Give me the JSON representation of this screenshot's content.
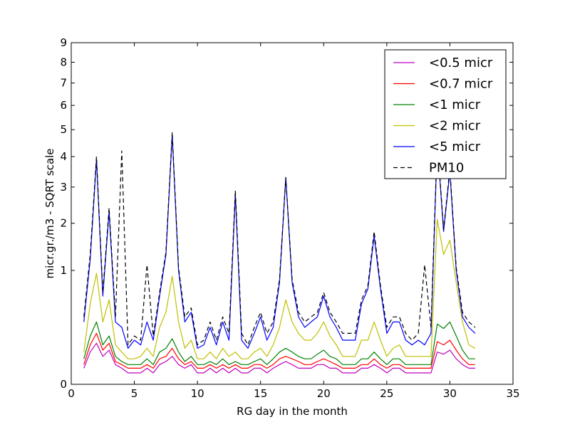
{
  "chart_data": {
    "type": "line",
    "title": "",
    "xlabel": "RG day in the month",
    "ylabel": "micr.gr./m3 - SQRT scale",
    "xlim": [
      0,
      35
    ],
    "ylim": [
      0,
      9
    ],
    "yscale": "sqrt",
    "x_ticks": [
      0,
      5,
      10,
      15,
      20,
      25,
      30,
      35
    ],
    "y_ticks": [
      0,
      1,
      2,
      3,
      4,
      5,
      6,
      7,
      8,
      9
    ],
    "grid": false,
    "legend_position": "top-right",
    "series": [
      {
        "name": "<0.5 micr",
        "color": "#bf00bf",
        "style": "solid",
        "x": [
          1,
          1.5,
          2,
          2.5,
          3,
          3.5,
          4,
          4.5,
          5,
          5.5,
          6,
          6.5,
          7,
          7.5,
          8,
          8.5,
          9,
          9.5,
          10,
          10.5,
          11,
          11.5,
          12,
          12.5,
          13,
          13.5,
          14,
          14.5,
          15,
          15.5,
          16,
          16.5,
          17,
          17.5,
          18,
          18.5,
          19,
          19.5,
          20,
          20.5,
          21,
          21.5,
          22,
          22.5,
          23,
          23.5,
          24,
          24.5,
          25,
          25.5,
          26,
          26.5,
          27,
          27.5,
          28,
          28.5,
          29,
          29.5,
          30,
          30.5,
          31,
          31.5,
          32
        ],
        "values": [
          0.02,
          0.08,
          0.13,
          0.06,
          0.09,
          0.03,
          0.02,
          0.01,
          0.01,
          0.01,
          0.02,
          0.01,
          0.03,
          0.04,
          0.06,
          0.03,
          0.02,
          0.03,
          0.01,
          0.01,
          0.02,
          0.01,
          0.02,
          0.01,
          0.02,
          0.01,
          0.01,
          0.02,
          0.02,
          0.01,
          0.02,
          0.03,
          0.04,
          0.03,
          0.02,
          0.02,
          0.02,
          0.03,
          0.03,
          0.02,
          0.02,
          0.01,
          0.01,
          0.01,
          0.02,
          0.02,
          0.03,
          0.02,
          0.01,
          0.02,
          0.02,
          0.01,
          0.01,
          0.01,
          0.01,
          0.01,
          0.08,
          0.07,
          0.09,
          0.05,
          0.03,
          0.02,
          0.02
        ]
      },
      {
        "name": "<0.7 micr",
        "color": "#ff0000",
        "style": "solid",
        "x": [
          1,
          1.5,
          2,
          2.5,
          3,
          3.5,
          4,
          4.5,
          5,
          5.5,
          6,
          6.5,
          7,
          7.5,
          8,
          8.5,
          9,
          9.5,
          10,
          10.5,
          11,
          11.5,
          12,
          12.5,
          13,
          13.5,
          14,
          14.5,
          15,
          15.5,
          16,
          16.5,
          17,
          17.5,
          18,
          18.5,
          19,
          19.5,
          20,
          20.5,
          21,
          21.5,
          22,
          22.5,
          23,
          23.5,
          24,
          24.5,
          25,
          25.5,
          26,
          26.5,
          27,
          27.5,
          28,
          28.5,
          29,
          29.5,
          30,
          30.5,
          31,
          31.5,
          32
        ],
        "values": [
          0.03,
          0.12,
          0.2,
          0.09,
          0.13,
          0.04,
          0.03,
          0.02,
          0.02,
          0.02,
          0.03,
          0.02,
          0.05,
          0.06,
          0.1,
          0.05,
          0.03,
          0.04,
          0.02,
          0.02,
          0.03,
          0.02,
          0.03,
          0.02,
          0.03,
          0.02,
          0.02,
          0.03,
          0.03,
          0.02,
          0.03,
          0.05,
          0.06,
          0.05,
          0.04,
          0.03,
          0.03,
          0.04,
          0.05,
          0.04,
          0.03,
          0.02,
          0.02,
          0.02,
          0.03,
          0.03,
          0.05,
          0.03,
          0.02,
          0.03,
          0.03,
          0.02,
          0.02,
          0.02,
          0.02,
          0.02,
          0.14,
          0.12,
          0.15,
          0.09,
          0.05,
          0.03,
          0.03
        ]
      },
      {
        "name": "<1 micr",
        "color": "#008000",
        "style": "solid",
        "x": [
          1,
          1.5,
          2,
          2.5,
          3,
          3.5,
          4,
          4.5,
          5,
          5.5,
          6,
          6.5,
          7,
          7.5,
          8,
          8.5,
          9,
          9.5,
          10,
          10.5,
          11,
          11.5,
          12,
          12.5,
          13,
          13.5,
          14,
          14.5,
          15,
          15.5,
          16,
          16.5,
          17,
          17.5,
          18,
          18.5,
          19,
          19.5,
          20,
          20.5,
          21,
          21.5,
          22,
          22.5,
          23,
          23.5,
          24,
          24.5,
          25,
          25.5,
          26,
          26.5,
          27,
          27.5,
          28,
          28.5,
          29,
          29.5,
          30,
          30.5,
          31,
          31.5,
          32
        ],
        "values": [
          0.05,
          0.18,
          0.3,
          0.12,
          0.18,
          0.06,
          0.04,
          0.03,
          0.03,
          0.03,
          0.05,
          0.03,
          0.08,
          0.1,
          0.16,
          0.08,
          0.04,
          0.06,
          0.03,
          0.03,
          0.04,
          0.03,
          0.05,
          0.03,
          0.04,
          0.03,
          0.03,
          0.04,
          0.05,
          0.03,
          0.05,
          0.08,
          0.1,
          0.08,
          0.06,
          0.05,
          0.05,
          0.07,
          0.09,
          0.06,
          0.05,
          0.03,
          0.03,
          0.03,
          0.05,
          0.05,
          0.08,
          0.05,
          0.03,
          0.05,
          0.05,
          0.03,
          0.03,
          0.03,
          0.03,
          0.03,
          0.28,
          0.24,
          0.3,
          0.18,
          0.09,
          0.05,
          0.05
        ]
      },
      {
        "name": "<2 micr",
        "color": "#bfbf00",
        "style": "solid",
        "x": [
          1,
          1.5,
          2,
          2.5,
          3,
          3.5,
          4,
          4.5,
          5,
          5.5,
          6,
          6.5,
          7,
          7.5,
          8,
          8.5,
          9,
          9.5,
          10,
          10.5,
          11,
          11.5,
          12,
          12.5,
          13,
          13.5,
          14,
          14.5,
          15,
          15.5,
          16,
          16.5,
          17,
          17.5,
          18,
          18.5,
          19,
          19.5,
          20,
          20.5,
          21,
          21.5,
          22,
          22.5,
          23,
          23.5,
          24,
          24.5,
          25,
          25.5,
          26,
          26.5,
          27,
          27.5,
          28,
          28.5,
          29,
          29.5,
          30,
          30.5,
          31,
          31.5,
          32
        ],
        "values": [
          0.08,
          0.5,
          0.95,
          0.3,
          0.55,
          0.12,
          0.08,
          0.05,
          0.05,
          0.06,
          0.1,
          0.06,
          0.25,
          0.4,
          0.9,
          0.3,
          0.1,
          0.15,
          0.05,
          0.05,
          0.08,
          0.05,
          0.1,
          0.06,
          0.08,
          0.05,
          0.05,
          0.08,
          0.1,
          0.06,
          0.12,
          0.25,
          0.55,
          0.3,
          0.2,
          0.15,
          0.15,
          0.2,
          0.3,
          0.18,
          0.12,
          0.06,
          0.06,
          0.06,
          0.15,
          0.15,
          0.3,
          0.15,
          0.06,
          0.1,
          0.12,
          0.06,
          0.06,
          0.06,
          0.06,
          0.06,
          2.1,
          1.3,
          1.6,
          0.8,
          0.3,
          0.12,
          0.1
        ]
      },
      {
        "name": "<5 micr",
        "color": "#0000ff",
        "style": "solid",
        "x": [
          1,
          1.5,
          2,
          2.5,
          3,
          3.5,
          4,
          4.5,
          5,
          5.5,
          6,
          6.5,
          7,
          7.5,
          8,
          8.5,
          9,
          9.5,
          10,
          10.5,
          11,
          11.5,
          12,
          12.5,
          13,
          13.5,
          14,
          14.5,
          15,
          15.5,
          16,
          16.5,
          17,
          17.5,
          18,
          18.5,
          19,
          19.5,
          20,
          20.5,
          21,
          21.5,
          22,
          22.5,
          23,
          23.5,
          24,
          24.5,
          25,
          25.5,
          26,
          26.5,
          27,
          27.5,
          28,
          28.5,
          29,
          29.5,
          30,
          30.5,
          31,
          31.5,
          32
        ],
        "values": [
          0.3,
          1.2,
          3.9,
          0.6,
          2.3,
          0.3,
          0.25,
          0.1,
          0.15,
          0.12,
          0.3,
          0.15,
          0.6,
          1.3,
          4.8,
          1,
          0.3,
          0.4,
          0.1,
          0.12,
          0.25,
          0.12,
          0.3,
          0.15,
          2.8,
          0.15,
          0.1,
          0.2,
          0.35,
          0.15,
          0.25,
          0.8,
          3.3,
          0.8,
          0.35,
          0.25,
          0.3,
          0.35,
          0.6,
          0.35,
          0.25,
          0.15,
          0.15,
          0.15,
          0.5,
          0.7,
          1.7,
          0.7,
          0.2,
          0.3,
          0.3,
          0.15,
          0.12,
          0.15,
          0.12,
          0.2,
          4.5,
          1.8,
          3.5,
          1,
          0.35,
          0.25,
          0.2
        ]
      },
      {
        "name": "PM10",
        "color": "#000000",
        "style": "dashed",
        "x": [
          1,
          1.5,
          2,
          2.5,
          3,
          3.5,
          4,
          4.5,
          5,
          5.5,
          6,
          6.5,
          7,
          7.5,
          8,
          8.5,
          9,
          9.5,
          10,
          10.5,
          11,
          11.5,
          12,
          12.5,
          13,
          13.5,
          14,
          14.5,
          15,
          15.5,
          16,
          16.5,
          17,
          17.5,
          18,
          18.5,
          19,
          19.5,
          20,
          20.5,
          21,
          21.5,
          22,
          22.5,
          23,
          23.5,
          24,
          24.5,
          25,
          25.5,
          26,
          26.5,
          27,
          27.5,
          28,
          28.5,
          29,
          29.5,
          30,
          30.5,
          31,
          31.5,
          32
        ],
        "values": [
          0.35,
          1.3,
          4,
          0.65,
          2.4,
          0.35,
          4.2,
          0.12,
          0.18,
          0.15,
          1.1,
          0.18,
          0.65,
          1.35,
          4.9,
          1.05,
          0.35,
          0.45,
          0.12,
          0.15,
          0.3,
          0.15,
          0.35,
          0.2,
          2.9,
          0.2,
          0.12,
          0.25,
          0.4,
          0.2,
          0.3,
          0.85,
          3.3,
          0.85,
          0.4,
          0.3,
          0.35,
          0.4,
          0.65,
          0.4,
          0.3,
          0.2,
          0.2,
          0.2,
          0.55,
          0.75,
          1.8,
          0.75,
          0.25,
          0.35,
          0.35,
          0.2,
          0.15,
          0.2,
          1.1,
          0.25,
          4.6,
          1.85,
          3.6,
          1.05,
          0.4,
          0.3,
          0.25
        ]
      }
    ]
  }
}
